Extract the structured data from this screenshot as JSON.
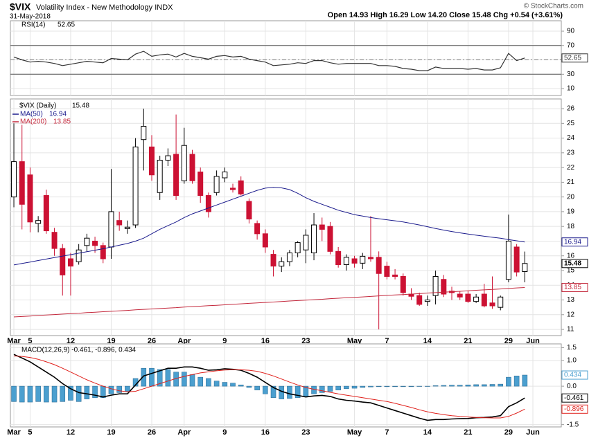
{
  "header": {
    "symbol": "$VIX",
    "name": "Volatility Index - New Methodology INDX",
    "date": "31-May-2018",
    "quote": "Open 14.93 High 16.29 Low 14.20 Close 15.48 Chg +0.54 (+3.61%)",
    "credit": "© StockCharts.com"
  },
  "chart_data": [
    {
      "type": "rsi",
      "xlim": [
        -0.43,
        67.5
      ],
      "xticks": [
        {
          "value": 0,
          "label": "Mar"
        },
        {
          "value": 2,
          "label": "5"
        },
        {
          "value": 7,
          "label": "12"
        },
        {
          "value": 12,
          "label": "19"
        },
        {
          "value": 17,
          "label": "26"
        },
        {
          "value": 21,
          "label": "Apr"
        },
        {
          "value": 26,
          "label": "9"
        },
        {
          "value": 31,
          "label": "16"
        },
        {
          "value": 36,
          "label": "23"
        },
        {
          "value": 42,
          "label": "May"
        },
        {
          "value": 46,
          "label": "7"
        },
        {
          "value": 51,
          "label": "14"
        },
        {
          "value": 56,
          "label": "21"
        },
        {
          "value": 61,
          "label": "29"
        },
        {
          "value": 64,
          "label": "Jun"
        }
      ],
      "ylim": [
        0.4,
        104.5
      ],
      "yticks": [
        10,
        30,
        50,
        70,
        90
      ],
      "grid": true,
      "reference_lines": [
        {
          "value": 70,
          "style": "solid"
        },
        {
          "value": 50,
          "style": "dashed"
        },
        {
          "value": 30,
          "style": "solid"
        }
      ],
      "series": [
        {
          "name": "RSI(14)",
          "color": "#333333",
          "values": [
            54,
            50,
            47,
            48,
            47,
            45,
            42,
            44,
            46,
            48,
            47,
            46,
            52,
            51,
            50,
            58,
            62,
            55,
            57,
            58,
            54,
            59,
            55,
            53,
            51,
            55,
            56,
            54,
            55,
            51,
            49,
            47,
            42,
            43,
            44,
            46,
            45,
            49,
            49,
            46,
            44,
            45,
            45,
            45,
            45,
            42,
            42,
            41,
            38,
            37,
            35,
            35,
            40,
            38,
            38,
            38,
            37,
            38,
            36,
            36,
            39,
            59,
            49,
            52.65
          ]
        }
      ]
    },
    {
      "type": "candlestick",
      "label": "$VIX (Daily)",
      "xlim": [
        -0.43,
        67.5
      ],
      "xticks": [
        {
          "value": 0,
          "label": "Mar"
        },
        {
          "value": 2,
          "label": "5"
        },
        {
          "value": 7,
          "label": "12"
        },
        {
          "value": 12,
          "label": "19"
        },
        {
          "value": 17,
          "label": "26"
        },
        {
          "value": 21,
          "label": "Apr"
        },
        {
          "value": 26,
          "label": "9"
        },
        {
          "value": 31,
          "label": "16"
        },
        {
          "value": 36,
          "label": "23"
        },
        {
          "value": 42,
          "label": "May"
        },
        {
          "value": 46,
          "label": "7"
        },
        {
          "value": 51,
          "label": "14"
        },
        {
          "value": 56,
          "label": "21"
        },
        {
          "value": 61,
          "label": "29"
        },
        {
          "value": 64,
          "label": "Jun"
        }
      ],
      "ylim": [
        10.58,
        26.66
      ],
      "yticks": [
        11,
        12,
        13,
        14,
        15,
        16,
        17,
        18,
        19,
        20,
        21,
        22,
        23,
        24,
        25,
        26
      ],
      "grid": true,
      "up_color": "#ffffff",
      "down_color": "#cc1133",
      "open": [
        20.0,
        22.4,
        21.5,
        18.2,
        20.1,
        17.6,
        16.5,
        15.8,
        15.6,
        16.7,
        17.0,
        16.7,
        16.6,
        18.4,
        17.85,
        18.1,
        23.9,
        23.4,
        20.3,
        22.5,
        22.9,
        21.1,
        22.9,
        21.7,
        20.1,
        20.3,
        21.3,
        20.6,
        21.1,
        19.7,
        18.2,
        17.5,
        16.1,
        15.3,
        15.6,
        16.2,
        16.4,
        16.2,
        18.1,
        18.0,
        16.3,
        15.4,
        15.8,
        15.5,
        15.9,
        15.9,
        15.3,
        14.7,
        14.6,
        13.4,
        13.3,
        12.9,
        13.3,
        14.4,
        13.6,
        13.4,
        13.4,
        12.9,
        13.4,
        12.8,
        12.5,
        14.4,
        16.6,
        14.93
      ],
      "high": [
        25.0,
        24.9,
        22.0,
        18.7,
        20.5,
        17.9,
        16.8,
        16.2,
        16.8,
        17.5,
        17.3,
        16.9,
        21.9,
        19.0,
        18.4,
        24.0,
        26.0,
        24.2,
        22.8,
        23.3,
        25.6,
        24.7,
        23.2,
        22.0,
        20.3,
        21.8,
        22.0,
        20.9,
        21.4,
        19.9,
        18.4,
        17.8,
        16.4,
        15.9,
        16.4,
        17.0,
        17.8,
        18.9,
        18.6,
        18.3,
        16.6,
        16.1,
        16.0,
        16.2,
        18.7,
        16.3,
        15.6,
        15.1,
        14.8,
        13.8,
        13.5,
        13.3,
        15.0,
        14.7,
        13.9,
        13.6,
        13.6,
        13.4,
        14.1,
        14.6,
        13.3,
        18.8,
        16.8,
        16.29
      ],
      "low": [
        19.3,
        17.8,
        17.6,
        17.6,
        17.5,
        16.0,
        13.3,
        13.3,
        15.4,
        16.3,
        16.2,
        15.5,
        15.8,
        17.7,
        17.5,
        17.9,
        21.8,
        21.1,
        19.8,
        22.1,
        19.8,
        20.9,
        20.9,
        19.6,
        18.6,
        20.1,
        21.0,
        20.3,
        20.1,
        18.2,
        17.1,
        16.2,
        14.6,
        14.9,
        15.3,
        15.9,
        15.5,
        15.7,
        17.0,
        16.1,
        15.2,
        15.0,
        15.2,
        15.1,
        15.6,
        11.0,
        14.4,
        14.4,
        13.3,
        13.0,
        12.6,
        12.6,
        12.7,
        13.2,
        13.0,
        13.0,
        12.8,
        12.8,
        12.5,
        12.4,
        12.3,
        14.2,
        14.6,
        14.2
      ],
      "close": [
        22.4,
        19.5,
        18.3,
        18.4,
        17.7,
        16.5,
        14.7,
        15.3,
        16.4,
        17.2,
        16.7,
        15.8,
        19.0,
        18.1,
        17.95,
        23.4,
        24.8,
        21.5,
        22.5,
        22.8,
        20.1,
        23.5,
        21.1,
        20.1,
        19.0,
        21.4,
        21.7,
        20.5,
        20.2,
        18.5,
        17.5,
        16.6,
        15.3,
        15.6,
        16.2,
        16.9,
        17.4,
        18.1,
        17.8,
        16.3,
        15.4,
        15.9,
        15.5,
        15.97,
        15.8,
        14.8,
        14.6,
        14.6,
        13.5,
        13.25,
        12.7,
        13.0,
        14.6,
        13.4,
        13.5,
        13.2,
        12.9,
        13.2,
        12.6,
        12.6,
        13.2,
        17.0,
        14.9,
        15.48
      ],
      "series": [
        {
          "name": "MA(50)",
          "color": "#1a1a8c",
          "values": [
            15.38,
            15.48,
            15.58,
            15.68,
            15.78,
            15.88,
            15.98,
            16.08,
            16.18,
            16.28,
            16.38,
            16.48,
            16.6,
            16.72,
            16.84,
            17.0,
            17.2,
            17.5,
            17.8,
            18.05,
            18.3,
            18.6,
            18.85,
            19.05,
            19.25,
            19.45,
            19.65,
            19.85,
            20.05,
            20.25,
            20.45,
            20.6,
            20.65,
            20.62,
            20.5,
            20.25,
            19.95,
            19.7,
            19.5,
            19.3,
            19.1,
            18.95,
            18.8,
            18.7,
            18.6,
            18.52,
            18.45,
            18.38,
            18.3,
            18.2,
            18.1,
            17.98,
            17.86,
            17.75,
            17.65,
            17.56,
            17.48,
            17.4,
            17.33,
            17.26,
            17.2,
            17.1,
            17.02,
            16.94
          ]
        },
        {
          "name": "MA(200)",
          "color": "#c4283c",
          "values": [
            11.85,
            11.88,
            11.91,
            11.95,
            11.98,
            12.01,
            12.04,
            12.07,
            12.1,
            12.14,
            12.17,
            12.2,
            12.23,
            12.26,
            12.29,
            12.33,
            12.36,
            12.39,
            12.42,
            12.45,
            12.48,
            12.52,
            12.55,
            12.58,
            12.61,
            12.64,
            12.67,
            12.71,
            12.74,
            12.77,
            12.8,
            12.83,
            12.86,
            12.9,
            12.93,
            12.96,
            12.99,
            13.02,
            13.05,
            13.09,
            13.12,
            13.15,
            13.18,
            13.21,
            13.24,
            13.28,
            13.31,
            13.34,
            13.37,
            13.4,
            13.43,
            13.47,
            13.5,
            13.53,
            13.56,
            13.59,
            13.62,
            13.66,
            13.69,
            13.72,
            13.75,
            13.78,
            13.82,
            13.85
          ]
        }
      ]
    },
    {
      "type": "macd",
      "legend": "MACD(12,26,9) -0.461, -0.896, 0.434",
      "xlim": [
        -0.43,
        67.5
      ],
      "xticks": [
        {
          "value": 0,
          "label": "Mar"
        },
        {
          "value": 2,
          "label": "5"
        },
        {
          "value": 7,
          "label": "12"
        },
        {
          "value": 12,
          "label": "19"
        },
        {
          "value": 17,
          "label": "26"
        },
        {
          "value": 21,
          "label": "Apr"
        },
        {
          "value": 26,
          "label": "9"
        },
        {
          "value": 31,
          "label": "16"
        },
        {
          "value": 36,
          "label": "23"
        },
        {
          "value": 42,
          "label": "May"
        },
        {
          "value": 46,
          "label": "7"
        },
        {
          "value": 51,
          "label": "14"
        },
        {
          "value": 56,
          "label": "21"
        },
        {
          "value": 61,
          "label": "29"
        },
        {
          "value": 64,
          "label": "Jun"
        }
      ],
      "ylim": [
        -1.59,
        1.65
      ],
      "yticks": [
        1.5,
        {
          "value": 1,
          "label": "1.0"
        },
        {
          "value": 0,
          "label": "0.0"
        },
        -1.5
      ],
      "grid": true,
      "series": [
        {
          "style": "bar",
          "color": "#4b9fcf",
          "values": [
            -0.6,
            -0.62,
            -0.62,
            -0.6,
            -0.62,
            -0.62,
            -0.6,
            -0.55,
            -0.6,
            -0.5,
            -0.45,
            -0.45,
            -0.3,
            -0.25,
            -0.2,
            0.3,
            0.7,
            0.7,
            0.65,
            0.65,
            0.55,
            0.55,
            0.45,
            0.35,
            0.3,
            0.2,
            0.15,
            0.12,
            0.05,
            -0.05,
            -0.15,
            -0.3,
            -0.45,
            -0.5,
            -0.48,
            -0.45,
            -0.4,
            -0.3,
            -0.25,
            -0.2,
            -0.15,
            -0.1,
            -0.08,
            -0.05,
            -0.03,
            -0.02,
            -0.02,
            -0.02,
            -0.02,
            -0.02,
            -0.01,
            -0.01,
            0.02,
            0.03,
            0.04,
            0.04,
            0.05,
            0.06,
            0.06,
            0.07,
            0.08,
            0.35,
            0.4,
            0.434
          ]
        },
        {
          "style": "line",
          "color": "#000000",
          "values": [
            1.24,
            1.1,
            0.95,
            0.75,
            0.55,
            0.35,
            0.1,
            -0.1,
            -0.25,
            -0.3,
            -0.35,
            -0.42,
            -0.35,
            -0.3,
            -0.3,
            0.05,
            0.4,
            0.5,
            0.6,
            0.7,
            0.7,
            0.75,
            0.75,
            0.7,
            0.62,
            0.64,
            0.68,
            0.66,
            0.62,
            0.5,
            0.35,
            0.15,
            -0.05,
            -0.2,
            -0.3,
            -0.36,
            -0.42,
            -0.38,
            -0.36,
            -0.4,
            -0.5,
            -0.55,
            -0.58,
            -0.62,
            -0.65,
            -0.75,
            -0.85,
            -0.95,
            -1.05,
            -1.15,
            -1.25,
            -1.33,
            -1.3,
            -1.3,
            -1.28,
            -1.27,
            -1.26,
            -1.23,
            -1.22,
            -1.2,
            -1.15,
            -0.8,
            -0.65,
            -0.461
          ]
        },
        {
          "style": "line",
          "color": "#e0201b",
          "values": [
            1.18,
            1.16,
            1.12,
            1.05,
            0.95,
            0.84,
            0.7,
            0.55,
            0.4,
            0.25,
            0.12,
            0.0,
            -0.1,
            -0.18,
            -0.22,
            -0.2,
            -0.1,
            0.0,
            0.1,
            0.2,
            0.3,
            0.38,
            0.45,
            0.52,
            0.56,
            0.6,
            0.63,
            0.64,
            0.64,
            0.62,
            0.58,
            0.5,
            0.4,
            0.28,
            0.16,
            0.05,
            -0.05,
            -0.12,
            -0.18,
            -0.24,
            -0.3,
            -0.35,
            -0.4,
            -0.45,
            -0.5,
            -0.55,
            -0.6,
            -0.67,
            -0.75,
            -0.83,
            -0.92,
            -1.0,
            -1.06,
            -1.11,
            -1.15,
            -1.18,
            -1.2,
            -1.22,
            -1.23,
            -1.24,
            -1.24,
            -1.18,
            -1.05,
            -0.896
          ]
        }
      ]
    }
  ]
}
